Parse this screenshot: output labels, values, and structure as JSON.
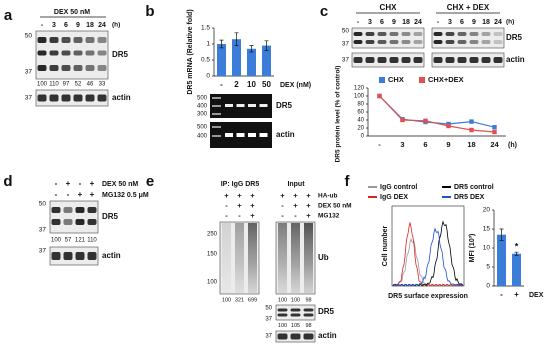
{
  "panels": {
    "a": {
      "label": "a",
      "treatment": "DEX 50 nM",
      "lanes": [
        "-",
        "3",
        "6",
        "9",
        "18",
        "24"
      ],
      "unit": "(h)",
      "mw": [
        "50",
        "37",
        "37"
      ],
      "blots": [
        "DR5",
        "actin"
      ],
      "quant": [
        100,
        110,
        97,
        52,
        46,
        33
      ]
    },
    "b": {
      "label": "b",
      "chart": {
        "type": "bar",
        "y_label": "DR5 mRNA (Relative fold)",
        "categories": [
          "-",
          "2",
          "10",
          "50"
        ],
        "x_label": "DEX (nM)",
        "values": [
          1,
          1.15,
          0.85,
          0.95
        ],
        "errors": [
          0.12,
          0.2,
          0.1,
          0.15
        ],
        "color": "#3b7dd8",
        "ylim": [
          0,
          1.5
        ],
        "yticks": [
          0,
          0.5,
          1,
          1.5
        ]
      },
      "gel": {
        "mw": [
          "500",
          "400",
          "300",
          "500",
          "400"
        ],
        "blots": [
          "DR5",
          "actin"
        ]
      }
    },
    "c": {
      "label": "c",
      "groups": [
        "CHX",
        "CHX + DEX"
      ],
      "lanes": [
        "-",
        "3",
        "6",
        "9",
        "18",
        "24"
      ],
      "unit": "(h)",
      "mw": [
        "50",
        "37",
        "37"
      ],
      "blots": [
        "DR5",
        "actin"
      ],
      "chart": {
        "type": "line",
        "y_label": "DR5 protein level (% of control)",
        "categories": [
          "-",
          "3",
          "6",
          "9",
          "18",
          "24"
        ],
        "x_unit": "(h)",
        "series": [
          {
            "name": "CHX",
            "color": "#3b7dd8",
            "values": [
              100,
              42,
              35,
              30,
              36,
              22
            ]
          },
          {
            "name": "CHX+DEX",
            "color": "#e05050",
            "values": [
              100,
              40,
              38,
              25,
              15,
              10
            ]
          }
        ],
        "ylim": [
          0,
          120
        ],
        "yticks": [
          0,
          20,
          40,
          60,
          80,
          100,
          120
        ]
      }
    },
    "d": {
      "label": "d",
      "rows": [
        {
          "name": "DEX 50 nM",
          "signs": [
            "-",
            "+",
            "-",
            "+"
          ]
        },
        {
          "name": "MG132 0.5 μM",
          "signs": [
            "-",
            "-",
            "+",
            "+"
          ]
        }
      ],
      "mw": [
        "50",
        "37",
        "37"
      ],
      "blots": [
        "DR5",
        "actin"
      ],
      "quant": [
        100,
        57,
        121,
        110
      ]
    },
    "e": {
      "label": "e",
      "groups": [
        "IP: IgG DR5",
        "Input"
      ],
      "rows": [
        {
          "name": "HA-ub",
          "ip": [
            "+",
            "+",
            "+"
          ],
          "input": [
            "+",
            "+",
            "+"
          ]
        },
        {
          "name": "DEX 50 nM",
          "ip": [
            "-",
            "+",
            "+"
          ],
          "input": [
            "-",
            "+",
            "+"
          ]
        },
        {
          "name": "MG132",
          "ip": [
            "-",
            "-",
            "+"
          ],
          "input": [
            "-",
            "-",
            "+"
          ]
        }
      ],
      "ub_mw": [
        "250",
        "150",
        "100"
      ],
      "ub_label": "Ub",
      "ub_quant": {
        "ip": [
          100,
          321,
          699
        ],
        "input": [
          100,
          100,
          98
        ]
      },
      "dr5_mw": [
        "50",
        "37"
      ],
      "dr5_label": "DR5",
      "dr5_quant": [
        100,
        105,
        98
      ],
      "actin_mw": [
        "37"
      ],
      "actin_label": "actin"
    },
    "f": {
      "label": "f",
      "legend": [
        {
          "name": "IgG control",
          "color": "#999999"
        },
        {
          "name": "IgG DEX",
          "color": "#e02020"
        },
        {
          "name": "DR5 control",
          "color": "#000000"
        },
        {
          "name": "DR5 DEX",
          "color": "#2050d0"
        }
      ],
      "histogram": {
        "y_label": "Cell number",
        "x_label": "DR5 surface expression"
      },
      "chart": {
        "type": "bar",
        "y_label": "MFI (10³)",
        "categories": [
          "-",
          "+"
        ],
        "x_label": "DEX",
        "values": [
          13.5,
          8.5
        ],
        "errors": [
          1.5,
          0.4
        ],
        "color": "#3b7dd8",
        "ylim": [
          0,
          20
        ],
        "yticks": [
          0,
          5,
          10,
          15,
          20
        ],
        "annotation": "*"
      }
    }
  }
}
